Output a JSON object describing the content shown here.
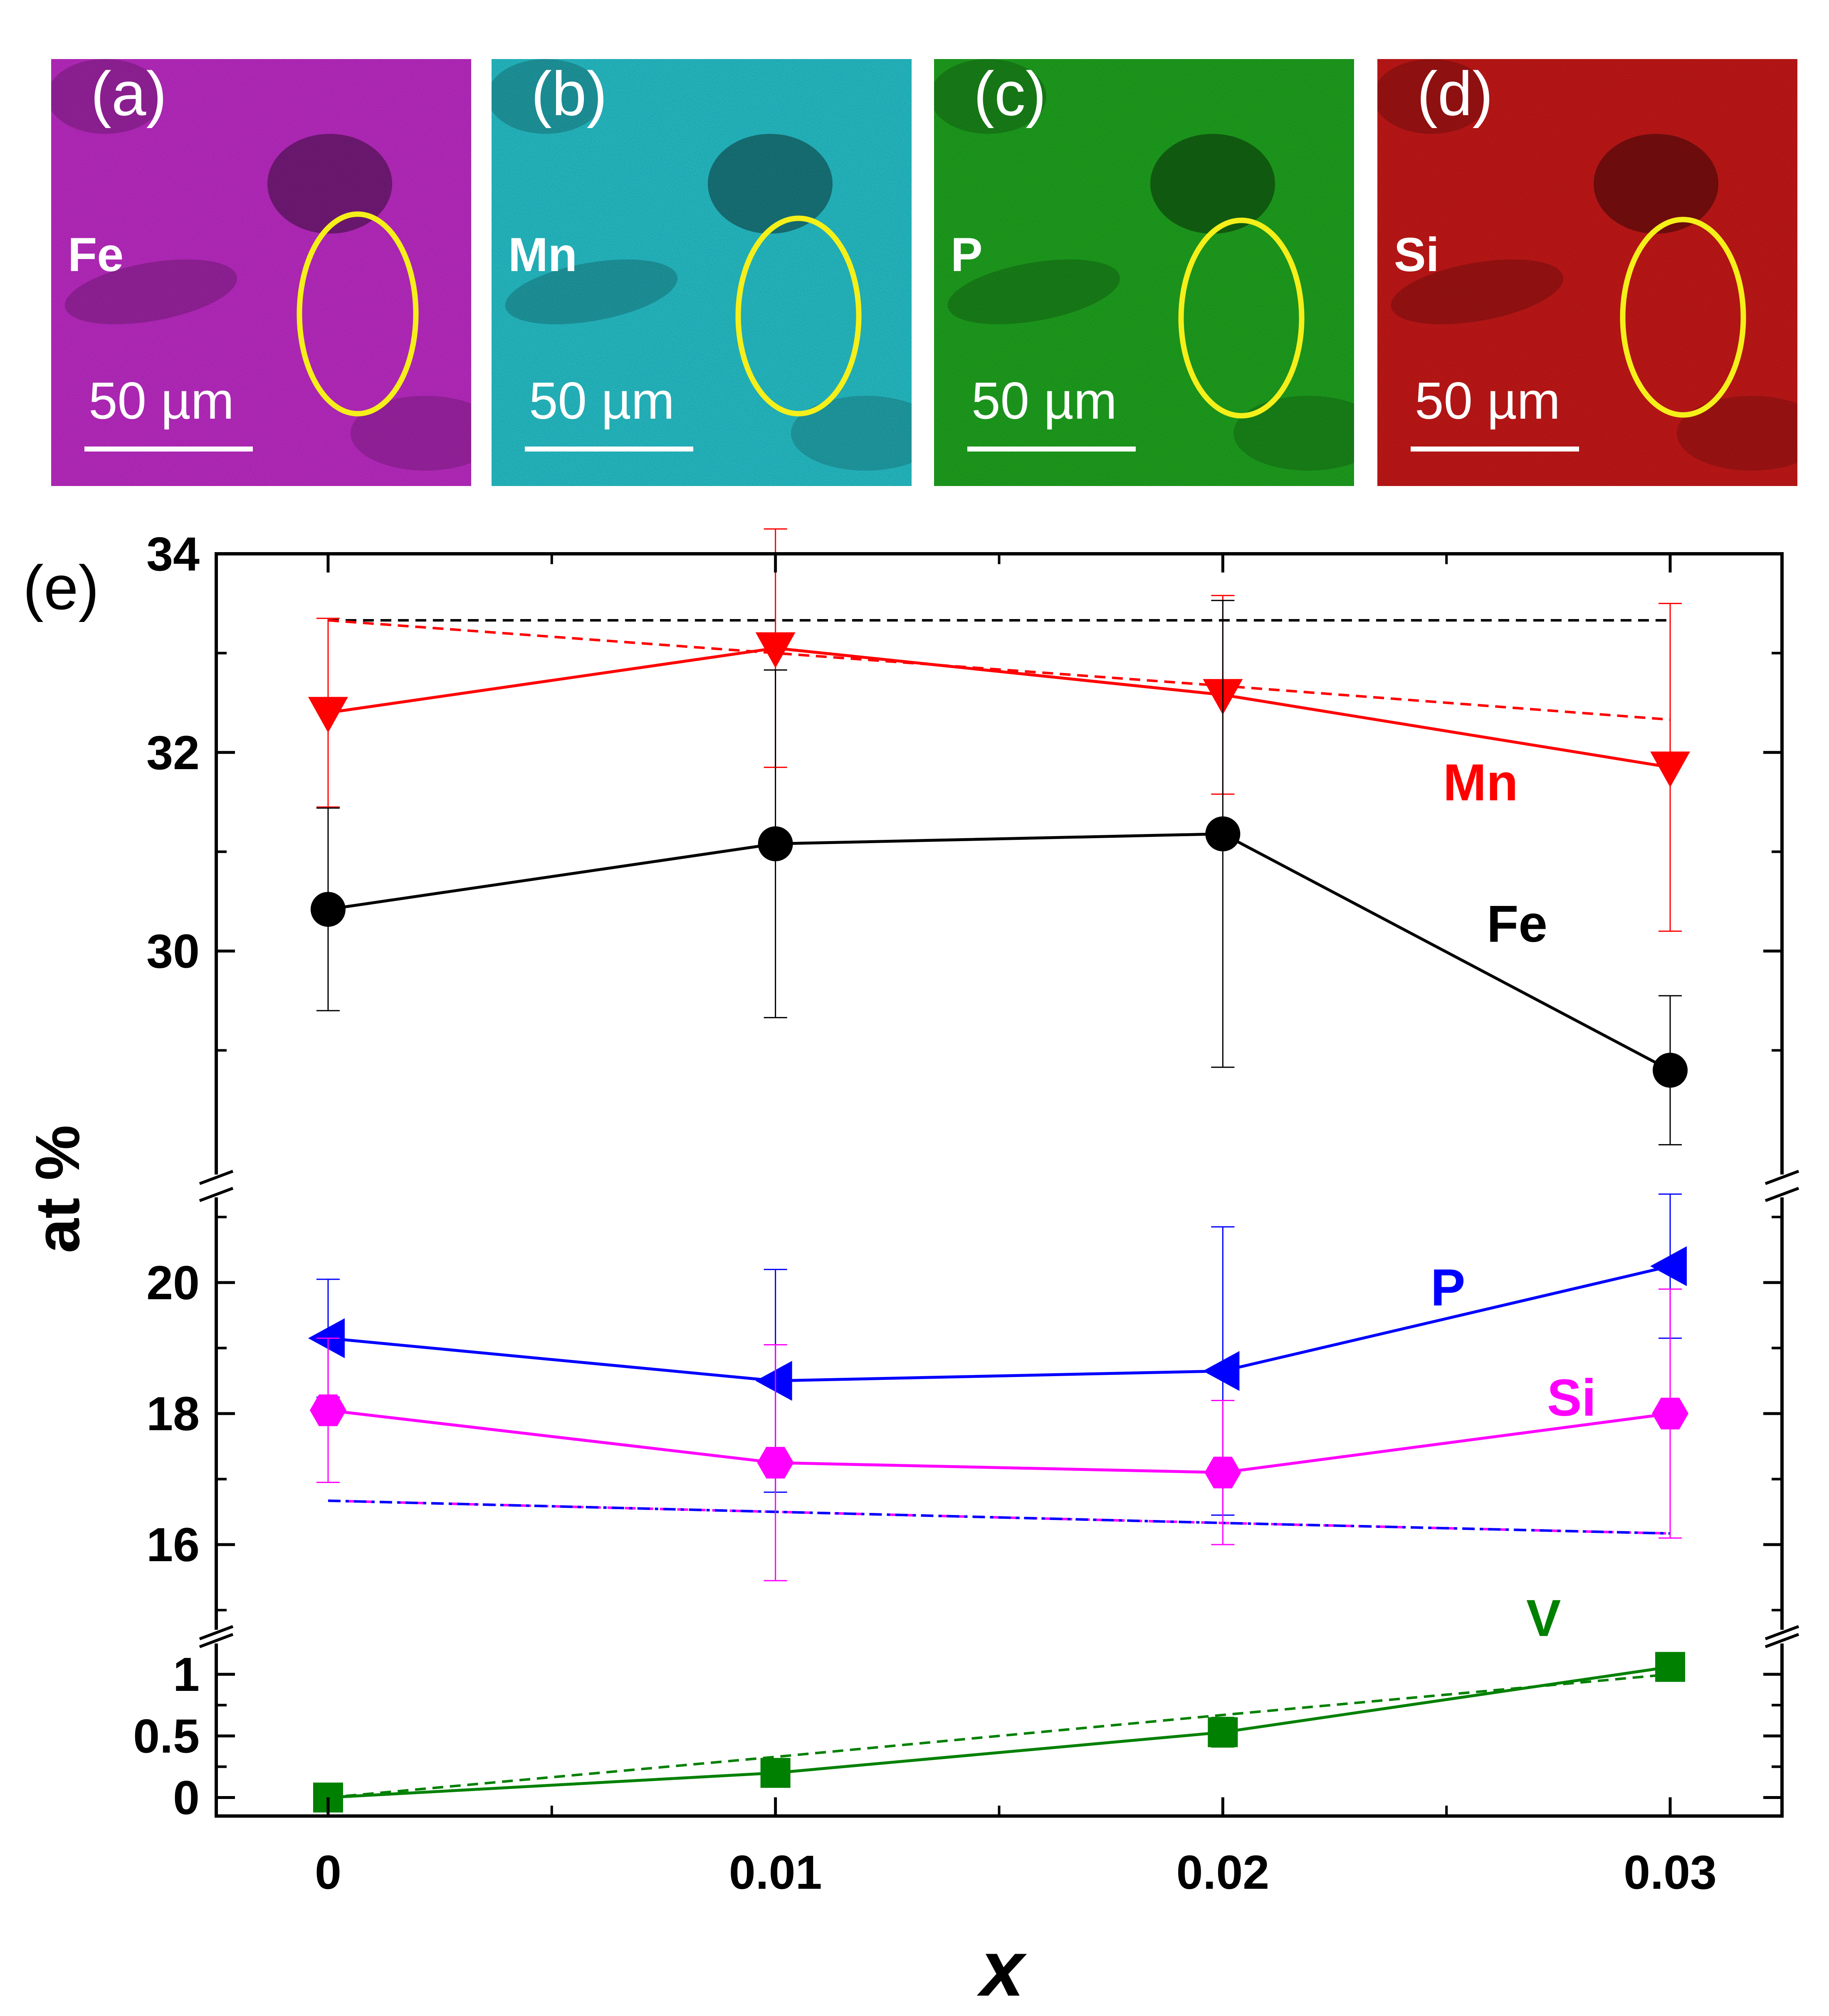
{
  "panels": [
    {
      "label": "(a)",
      "element": "Fe",
      "scale_text": "50 µm",
      "color": "#c02cc8"
    },
    {
      "label": "(b)",
      "element": "Mn",
      "scale_text": "50 µm",
      "color": "#27c3cc"
    },
    {
      "label": "(c)",
      "element": "P",
      "scale_text": "50 µm",
      "color": "#1fa51f"
    },
    {
      "label": "(d)",
      "element": "Si",
      "scale_text": "50 µm",
      "color": "#c81818"
    }
  ],
  "highlight_color": "#f5ef1a",
  "chart_label": "(e)",
  "chart_data": {
    "type": "line",
    "xlabel": "x",
    "ylabel": "at %",
    "x": [
      0,
      0.01,
      0.02,
      0.03
    ],
    "x_ticks": [
      "0",
      "0.01",
      "0.02",
      "0.03"
    ],
    "x_range": [
      -0.0025,
      0.0325
    ],
    "y_axis_breaks": [
      {
        "segment": "top",
        "range": [
          27.75,
          34
        ],
        "ticks": [
          30,
          32,
          34
        ],
        "tick_labels": [
          "30",
          "32",
          "34"
        ]
      },
      {
        "segment": "middle",
        "range": [
          14.7,
          21.3
        ],
        "ticks": [
          16,
          18,
          20
        ],
        "tick_labels": [
          "16",
          "18",
          "20"
        ]
      },
      {
        "segment": "bottom",
        "range": [
          -0.15,
          1.25
        ],
        "ticks": [
          0,
          0.5,
          1
        ],
        "tick_labels": [
          "0",
          "0.5",
          "1"
        ]
      }
    ],
    "series": [
      {
        "name": "Mn",
        "color": "#ff0000",
        "marker": "triangle-down",
        "segment": "top",
        "values": [
          32.4,
          33.05,
          32.58,
          31.85
        ],
        "err": [
          0.95,
          1.2,
          1.0,
          1.65
        ]
      },
      {
        "name": "Fe",
        "color": "#000000",
        "marker": "circle",
        "segment": "top",
        "values": [
          30.42,
          31.08,
          31.18,
          28.8
        ],
        "err": [
          1.02,
          1.75,
          2.35,
          0.75
        ]
      },
      {
        "name": "P",
        "color": "#0000ff",
        "marker": "triangle-left",
        "segment": "middle",
        "values": [
          19.15,
          18.5,
          18.65,
          20.25
        ],
        "err": [
          0.9,
          1.7,
          2.2,
          1.1
        ]
      },
      {
        "name": "Si",
        "color": "#ff00ff",
        "marker": "hexagon",
        "segment": "middle",
        "values": [
          18.05,
          17.25,
          17.1,
          18.0
        ],
        "err": [
          1.1,
          1.8,
          1.1,
          1.9
        ]
      },
      {
        "name": "V",
        "color": "#008000",
        "marker": "square",
        "segment": "bottom",
        "values": [
          0.0,
          0.2,
          0.53,
          1.06
        ],
        "err": [
          0.02,
          0.05,
          0.12,
          0.1
        ]
      }
    ],
    "nominal_lines": [
      {
        "color": "#000000",
        "style": "dashed",
        "segment": "top",
        "values": [
          33.33,
          33.33,
          33.33,
          33.33
        ]
      },
      {
        "color": "#ff0000",
        "style": "dashed",
        "segment": "top",
        "values": [
          33.33,
          33.0,
          32.67,
          32.33
        ]
      },
      {
        "color": "#ff00ff",
        "style": "dashed",
        "segment": "middle",
        "values": [
          16.67,
          16.5,
          16.33,
          16.17
        ]
      },
      {
        "color": "#0000ff",
        "style": "dash-dot",
        "segment": "middle",
        "values": [
          16.67,
          16.5,
          16.33,
          16.17
        ]
      },
      {
        "color": "#008000",
        "style": "dashed",
        "segment": "bottom",
        "values": [
          0.0,
          0.33,
          0.67,
          1.0
        ]
      }
    ],
    "grid": false
  }
}
